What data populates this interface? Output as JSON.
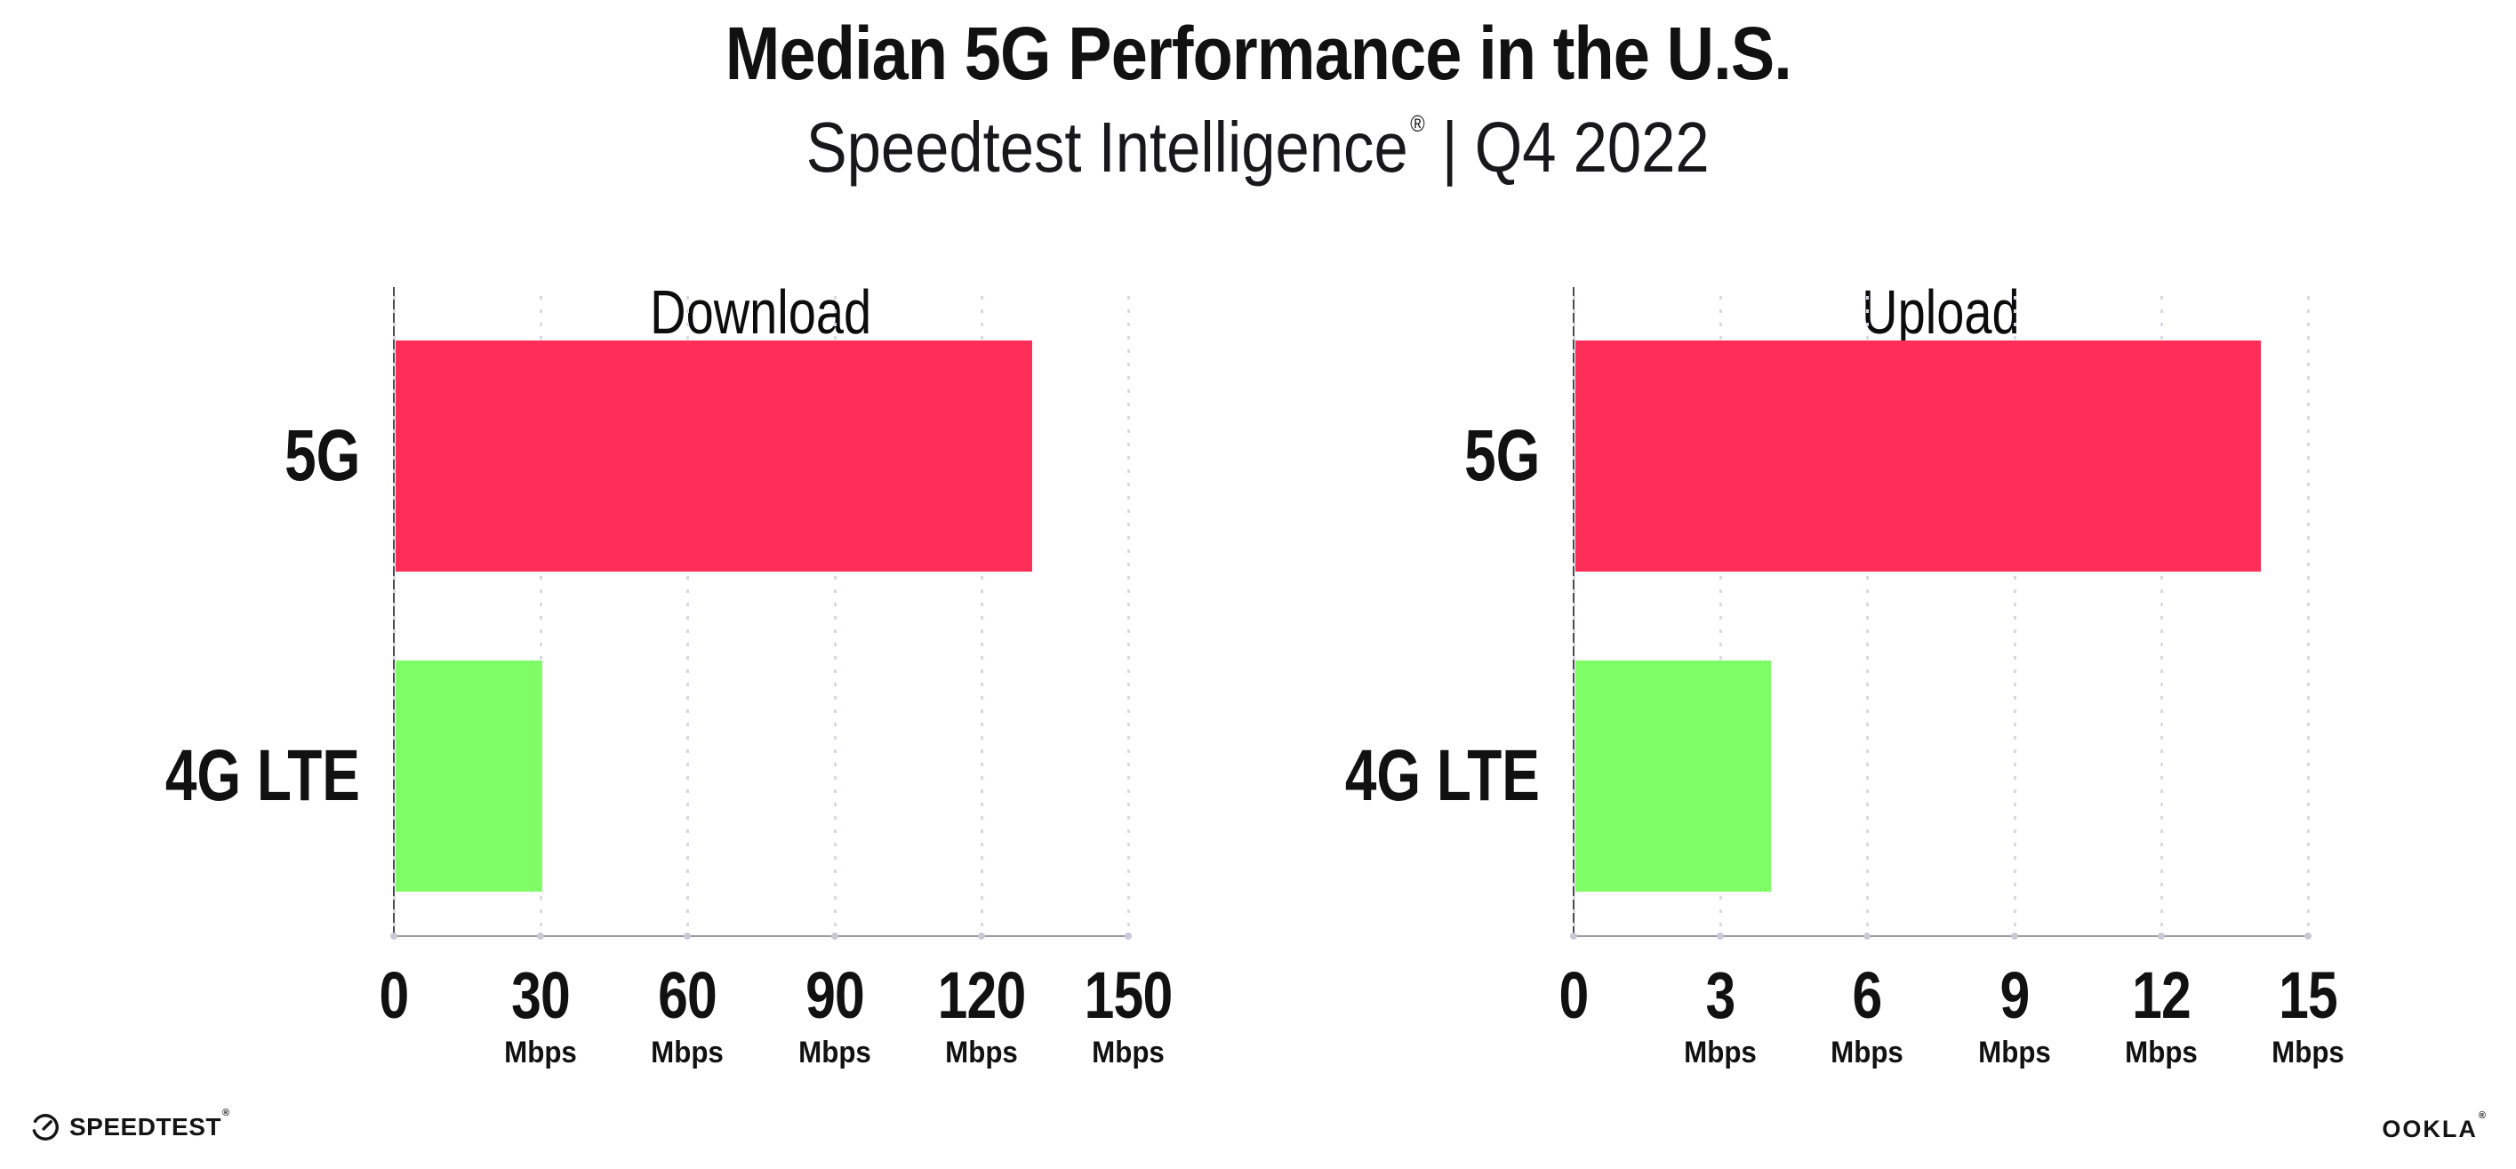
{
  "header": {
    "title": "Median 5G Performance in the U.S.",
    "subtitle": {
      "brand": "Speedtest Intelligence",
      "registered_mark": "®",
      "rest": "| Q4 2022"
    }
  },
  "chart_data": [
    {
      "type": "bar",
      "title": "Download",
      "orientation": "horizontal",
      "categories": [
        "5G",
        "4G LTE"
      ],
      "values": [
        130,
        30
      ],
      "unit": "Mbps",
      "xlim": [
        0,
        150
      ],
      "xticks": [
        0,
        30,
        60,
        90,
        120,
        150
      ],
      "bar_colors": [
        "#fd2e57",
        "#7efd66"
      ],
      "grid": "dotted-vertical",
      "legend": "none"
    },
    {
      "type": "bar",
      "title": "Upload",
      "orientation": "horizontal",
      "categories": [
        "5G",
        "4G LTE"
      ],
      "values": [
        14,
        4
      ],
      "unit": "Mbps",
      "xlim": [
        0,
        15
      ],
      "xticks": [
        0,
        3,
        6,
        9,
        12,
        15
      ],
      "bar_colors": [
        "#fd2e57",
        "#7efd66"
      ],
      "grid": "dotted-vertical",
      "legend": "none"
    }
  ],
  "footer": {
    "speedtest": {
      "label": "SPEEDTEST",
      "mark": "®"
    },
    "ookla": {
      "label": "OOKLA",
      "mark": "®"
    }
  },
  "colors": {
    "bar_5g": "#fd2e57",
    "bar_4g_lte": "#7efd66",
    "gridline": "#d9d9e3",
    "y_axis_line": "#4a4a52",
    "x_axis_line": "#9b9ba1",
    "tick_dot": "#c9c9d5",
    "text": "#111111"
  }
}
